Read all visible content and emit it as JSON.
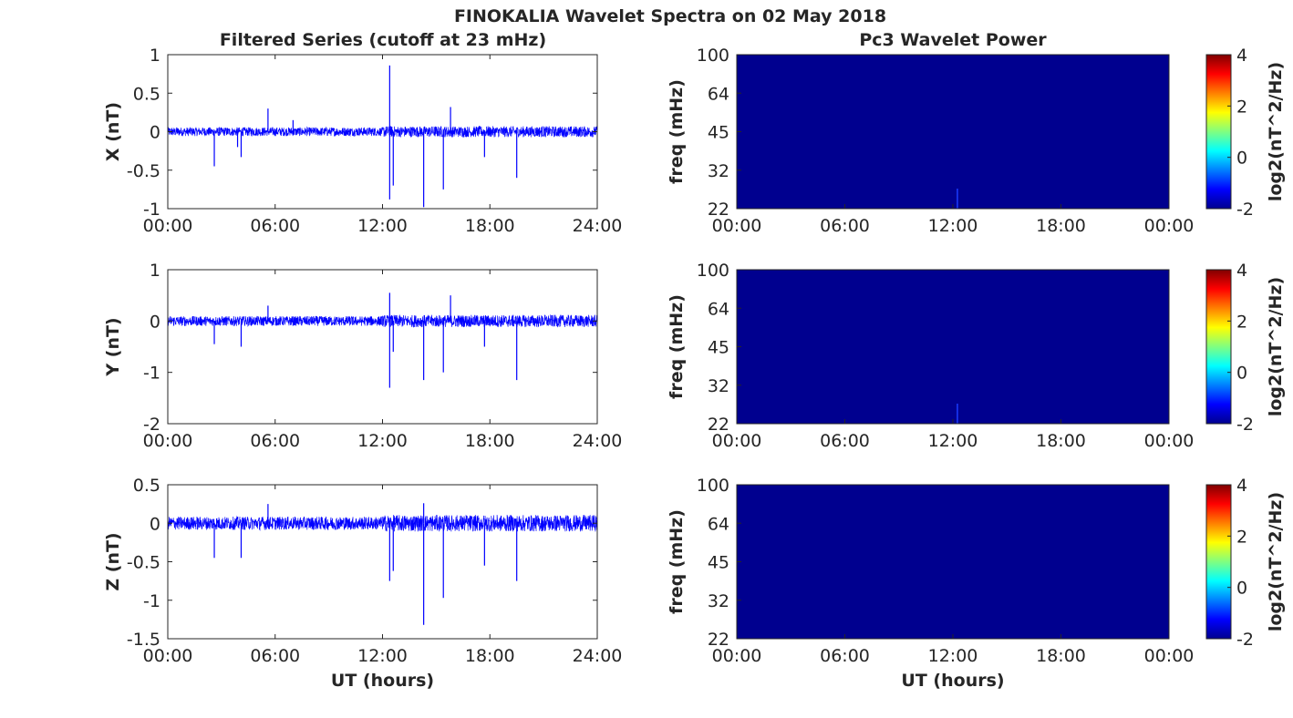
{
  "figure": {
    "title": "FINOKALIA Wavelet Spectra on 02 May 2018",
    "left_column_title": "Filtered Series (cutoff at 23 mHz)",
    "right_column_title": "Pc3 Wavelet Power",
    "xlabel": "UT (hours)"
  },
  "colors": {
    "trace": "#0000ff",
    "spectrum_background": "#00008f",
    "spectrum_spike": "#1a3cff",
    "axes": "#262626"
  },
  "chart_data": [
    {
      "type": "line",
      "component": "X",
      "title": "Filtered Series (cutoff at 23 mHz)",
      "ylabel": "X (nT)",
      "xlabel": "",
      "xlim": [
        0,
        24
      ],
      "ylim": [
        -1,
        1
      ],
      "xticks": [
        "00:00",
        "06:00",
        "12:00",
        "18:00",
        "24:00"
      ],
      "yticks": [
        "1",
        "0.5",
        "0",
        "-0.5",
        "-1"
      ],
      "ytick_values": [
        1,
        0.5,
        0,
        -0.5,
        -1
      ],
      "baseline_noise": 0.06,
      "spikes": [
        {
          "t": 2.6,
          "v": -0.45
        },
        {
          "t": 3.9,
          "v": -0.2
        },
        {
          "t": 4.1,
          "v": -0.33
        },
        {
          "t": 5.6,
          "v": 0.3
        },
        {
          "t": 7.0,
          "v": 0.15
        },
        {
          "t": 12.4,
          "v": 0.86
        },
        {
          "t": 12.4,
          "v": -0.88
        },
        {
          "t": 12.6,
          "v": -0.7
        },
        {
          "t": 14.3,
          "v": -0.98
        },
        {
          "t": 15.4,
          "v": -0.75
        },
        {
          "t": 15.8,
          "v": 0.32
        },
        {
          "t": 17.7,
          "v": -0.33
        },
        {
          "t": 19.5,
          "v": -0.6
        }
      ]
    },
    {
      "type": "line",
      "component": "Y",
      "title": "",
      "ylabel": "Y (nT)",
      "xlabel": "",
      "xlim": [
        0,
        24
      ],
      "ylim": [
        -2,
        1
      ],
      "xticks": [
        "00:00",
        "06:00",
        "12:00",
        "18:00",
        "24:00"
      ],
      "yticks": [
        "1",
        "0",
        "-1",
        "-2"
      ],
      "ytick_values": [
        1,
        0,
        -1,
        -2
      ],
      "baseline_noise": 0.1,
      "spikes": [
        {
          "t": 2.6,
          "v": -0.45
        },
        {
          "t": 4.1,
          "v": -0.5
        },
        {
          "t": 5.6,
          "v": 0.3
        },
        {
          "t": 12.4,
          "v": 0.55
        },
        {
          "t": 12.4,
          "v": -1.3
        },
        {
          "t": 12.6,
          "v": -0.6
        },
        {
          "t": 14.3,
          "v": -1.15
        },
        {
          "t": 15.4,
          "v": -1.0
        },
        {
          "t": 15.8,
          "v": 0.5
        },
        {
          "t": 17.7,
          "v": -0.5
        },
        {
          "t": 19.5,
          "v": -1.15
        }
      ]
    },
    {
      "type": "line",
      "component": "Z",
      "title": "",
      "ylabel": "Z (nT)",
      "xlabel": "UT (hours)",
      "xlim": [
        0,
        24
      ],
      "ylim": [
        -1.5,
        0.5
      ],
      "xticks": [
        "00:00",
        "06:00",
        "12:00",
        "18:00",
        "24:00"
      ],
      "yticks": [
        "0.5",
        "0",
        "-0.5",
        "-1",
        "-1.5"
      ],
      "ytick_values": [
        0.5,
        0,
        -0.5,
        -1,
        -1.5
      ],
      "baseline_noise": 0.09,
      "spikes": [
        {
          "t": 2.6,
          "v": -0.45
        },
        {
          "t": 4.1,
          "v": -0.45
        },
        {
          "t": 5.6,
          "v": 0.25
        },
        {
          "t": 12.4,
          "v": -0.75
        },
        {
          "t": 12.6,
          "v": -0.62
        },
        {
          "t": 14.3,
          "v": -1.32
        },
        {
          "t": 14.3,
          "v": 0.26
        },
        {
          "t": 15.4,
          "v": -0.97
        },
        {
          "t": 17.7,
          "v": -0.55
        },
        {
          "t": 19.5,
          "v": -0.75
        }
      ]
    },
    {
      "type": "heatmap",
      "component": "X",
      "title": "Pc3 Wavelet Power",
      "ylabel": "freq (mHz)",
      "xlabel": "",
      "xticks": [
        "00:00",
        "06:00",
        "12:00",
        "18:00",
        "00:00"
      ],
      "yticks": [
        "100",
        "64",
        "45",
        "32",
        "22"
      ],
      "colorbar": {
        "label": "log2(nT^2/Hz)",
        "ticks": [
          "4",
          "2",
          "0",
          "-2"
        ],
        "range": [
          -2,
          4
        ]
      },
      "spike_hours": [
        12.25
      ]
    },
    {
      "type": "heatmap",
      "component": "Y",
      "title": "",
      "ylabel": "freq (mHz)",
      "xlabel": "",
      "xticks": [
        "00:00",
        "06:00",
        "12:00",
        "18:00",
        "00:00"
      ],
      "yticks": [
        "100",
        "64",
        "45",
        "32",
        "22"
      ],
      "colorbar": {
        "label": "log2(nT^2/Hz)",
        "ticks": [
          "4",
          "2",
          "0",
          "-2"
        ],
        "range": [
          -2,
          4
        ]
      },
      "spike_hours": [
        12.25
      ]
    },
    {
      "type": "heatmap",
      "component": "Z",
      "title": "",
      "ylabel": "freq (mHz)",
      "xlabel": "UT (hours)",
      "xticks": [
        "00:00",
        "06:00",
        "12:00",
        "18:00",
        "00:00"
      ],
      "yticks": [
        "100",
        "64",
        "45",
        "32",
        "22"
      ],
      "colorbar": {
        "label": "log2(nT^2/Hz)",
        "ticks": [
          "4",
          "2",
          "0",
          "-2"
        ],
        "range": [
          -2,
          4
        ]
      },
      "spike_hours": []
    }
  ]
}
